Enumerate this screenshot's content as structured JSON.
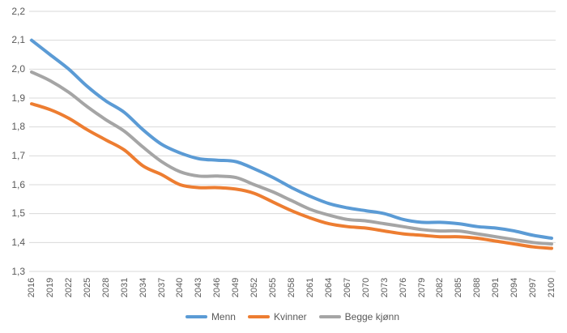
{
  "chart_data": {
    "type": "line",
    "title": "",
    "x": [
      2016,
      2019,
      2022,
      2025,
      2028,
      2031,
      2034,
      2037,
      2040,
      2043,
      2046,
      2049,
      2052,
      2055,
      2058,
      2061,
      2064,
      2067,
      2070,
      2073,
      2076,
      2079,
      2082,
      2085,
      2088,
      2091,
      2094,
      2097,
      2100
    ],
    "series": [
      {
        "name": "Menn",
        "color": "#5B9BD5",
        "values": [
          2.1,
          2.05,
          2.0,
          1.94,
          1.89,
          1.85,
          1.79,
          1.74,
          1.71,
          1.69,
          1.685,
          1.68,
          1.655,
          1.625,
          1.59,
          1.56,
          1.535,
          1.52,
          1.51,
          1.5,
          1.48,
          1.47,
          1.47,
          1.465,
          1.455,
          1.45,
          1.44,
          1.425,
          1.415
        ]
      },
      {
        "name": "Kvinner",
        "color": "#ED7D31",
        "values": [
          1.88,
          1.86,
          1.83,
          1.79,
          1.755,
          1.72,
          1.665,
          1.635,
          1.6,
          1.59,
          1.59,
          1.585,
          1.57,
          1.54,
          1.51,
          1.485,
          1.465,
          1.455,
          1.45,
          1.44,
          1.43,
          1.425,
          1.42,
          1.42,
          1.415,
          1.405,
          1.395,
          1.385,
          1.38
        ]
      },
      {
        "name": "Begge kjønn",
        "color": "#A5A5A5",
        "values": [
          1.99,
          1.96,
          1.92,
          1.87,
          1.825,
          1.785,
          1.73,
          1.68,
          1.645,
          1.63,
          1.63,
          1.625,
          1.6,
          1.575,
          1.545,
          1.515,
          1.495,
          1.48,
          1.475,
          1.465,
          1.455,
          1.445,
          1.44,
          1.44,
          1.43,
          1.42,
          1.41,
          1.4,
          1.395
        ]
      }
    ],
    "y_axis": {
      "min": 1.3,
      "max": 2.2,
      "step": 0.1,
      "tick_labels": [
        "2,2",
        "2,1",
        "2,0",
        "1,9",
        "1,8",
        "1,7",
        "1,6",
        "1,5",
        "1,4",
        "1,3"
      ],
      "decimal_separator": ","
    },
    "x_axis": {
      "tick_labels": [
        "2016",
        "2019",
        "2022",
        "2025",
        "2028",
        "2031",
        "2034",
        "2037",
        "2040",
        "2043",
        "2046",
        "2049",
        "2052",
        "2055",
        "2058",
        "2061",
        "2064",
        "2067",
        "2070",
        "2073",
        "2076",
        "2079",
        "2082",
        "2085",
        "2088",
        "2091",
        "2094",
        "2097",
        "2100"
      ]
    },
    "legend": {
      "position": "bottom",
      "items": [
        "Menn",
        "Kvinner",
        "Begge kjønn"
      ]
    },
    "grid": true,
    "colors": {
      "text": "#595959",
      "gridline": "#D9D9D9",
      "background": "#FFFFFF"
    }
  }
}
